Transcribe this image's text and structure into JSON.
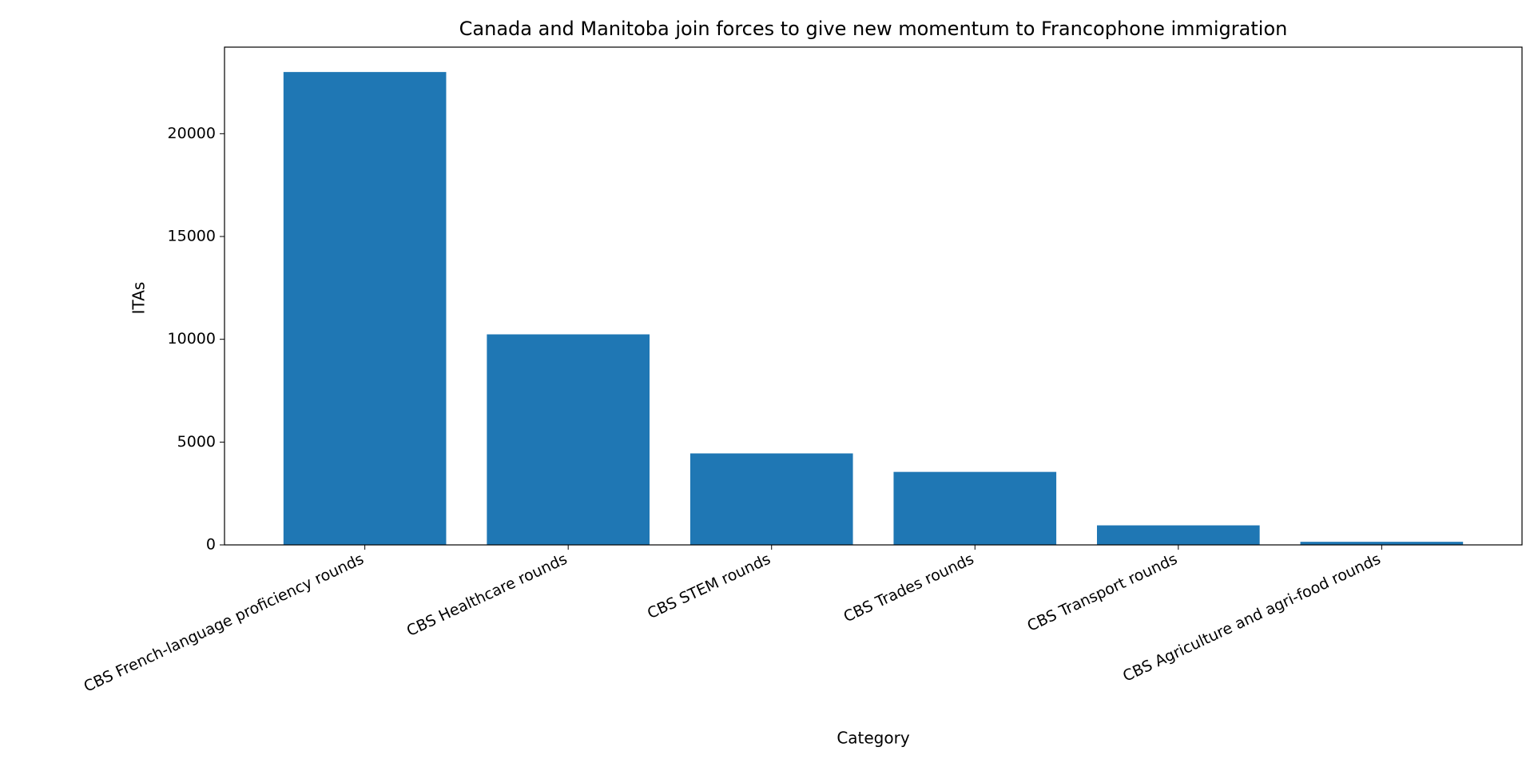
{
  "chart_data": {
    "type": "bar",
    "title": "Canada and Manitoba join forces to give new momentum to Francophone immigration",
    "x_label": "Category",
    "y_label": "ITAs",
    "categories": [
      "CBS French-language proficiency rounds",
      "CBS Healthcare rounds",
      "CBS STEM rounds",
      "CBS Trades rounds",
      "CBS Transport rounds",
      "CBS Agriculture and agri-food rounds"
    ],
    "values": [
      23000,
      10240,
      4450,
      3550,
      950,
      150
    ],
    "color": "#1f77b4",
    "ylim": [
      0,
      24210
    ],
    "yticks": [
      0,
      5000,
      10000,
      15000,
      20000
    ],
    "grid": false
  }
}
